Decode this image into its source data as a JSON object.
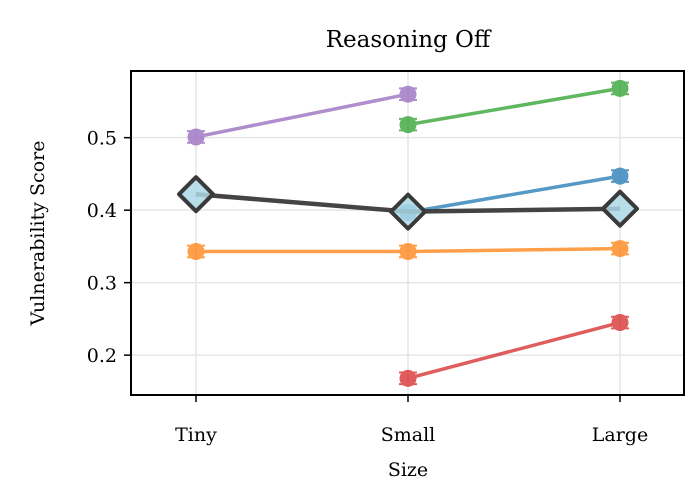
{
  "chart_data": {
    "type": "line",
    "title": "Reasoning Off",
    "xlabel": "Size",
    "ylabel": "Vulnerability Score",
    "categories": [
      "Tiny",
      "Small",
      "Large"
    ],
    "ylim": [
      0.145,
      0.592
    ],
    "yticks": [
      0.2,
      0.3,
      0.4,
      0.5
    ],
    "ytick_labels": [
      "0.2",
      "0.3",
      "0.4",
      "0.5"
    ],
    "grid": true,
    "series": [
      {
        "color": "#9467bd",
        "values": [
          0.501,
          0.56,
          null
        ],
        "errors": [
          0.008,
          0.008,
          null
        ]
      },
      {
        "color": "#2ca02c",
        "values": [
          null,
          0.518,
          0.568
        ],
        "errors": [
          null,
          0.008,
          0.008
        ]
      },
      {
        "color": "#1f77b4",
        "values": [
          null,
          0.397,
          0.447
        ],
        "errors": [
          null,
          0.008,
          0.008
        ]
      },
      {
        "color": "#ff7f0e",
        "values": [
          0.343,
          0.343,
          0.347
        ],
        "errors": [
          0.008,
          0.008,
          0.008
        ]
      },
      {
        "color": "#d62728",
        "values": [
          null,
          0.168,
          0.245
        ],
        "errors": [
          null,
          0.008,
          0.008
        ]
      }
    ],
    "mean_series": {
      "color": "#3a3a3a",
      "marker": "diamond",
      "marker_fill": "#add8e6",
      "values": [
        0.422,
        0.398,
        0.402
      ]
    }
  }
}
